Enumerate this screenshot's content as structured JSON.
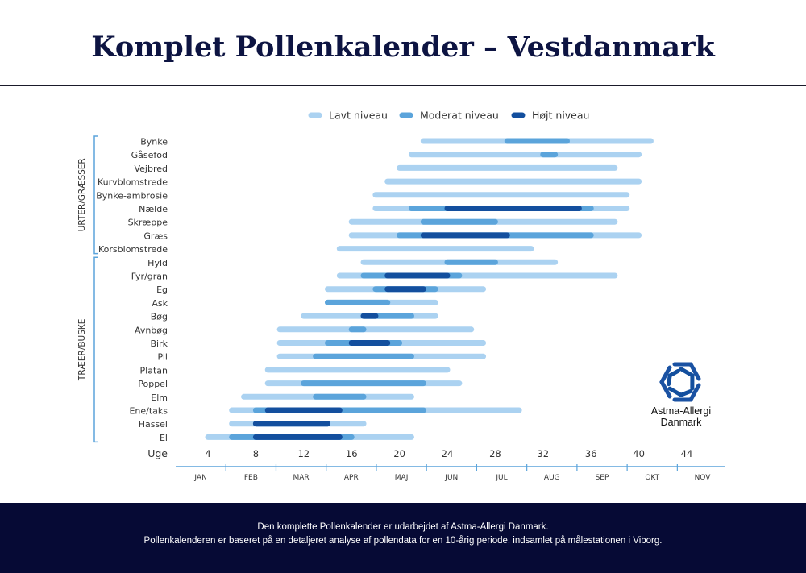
{
  "header": {
    "title": "Komplet Pollenkalender – Vestdanmark"
  },
  "chart_data": {
    "type": "bar",
    "subtype": "range-timeline",
    "x_axis_label": "Uge",
    "x_ticks": [
      4,
      8,
      12,
      16,
      20,
      24,
      28,
      32,
      36,
      40,
      44
    ],
    "x_range": [
      2,
      45.5
    ],
    "months": [
      "JAN",
      "FEB",
      "MAR",
      "APR",
      "MAJ",
      "JUN",
      "JUL",
      "AUG",
      "SEP",
      "OKT",
      "NOV"
    ],
    "legend": {
      "placement": "top",
      "entries": [
        {
          "key": "low",
          "label": "Lavt niveau",
          "color": "#abd2f1"
        },
        {
          "key": "moderate",
          "label": "Moderat niveau",
          "color": "#5ba4db"
        },
        {
          "key": "high",
          "label": "Højt niveau",
          "color": "#134f9e"
        }
      ]
    },
    "groups": [
      {
        "label": "URTER/GRÆSSER",
        "rows": [
          0,
          8
        ]
      },
      {
        "label": "TRÆER/BUSKE",
        "rows": [
          9,
          22
        ]
      }
    ],
    "rows": [
      {
        "name": "Bynke",
        "low": [
          22,
          41
        ],
        "moderate": [
          [
            29,
            34
          ]
        ],
        "high": []
      },
      {
        "name": "Gåsefod",
        "low": [
          21,
          40
        ],
        "moderate": [
          [
            32,
            33
          ]
        ],
        "high": []
      },
      {
        "name": "Vejbred",
        "low": [
          20,
          38
        ],
        "moderate": [],
        "high": []
      },
      {
        "name": "Kurvblomstrede",
        "low": [
          19,
          40
        ],
        "moderate": [],
        "high": []
      },
      {
        "name": "Bynke-ambrosie",
        "low": [
          18,
          39
        ],
        "moderate": [],
        "high": []
      },
      {
        "name": "Nælde",
        "low": [
          18,
          39
        ],
        "moderate": [
          [
            21,
            36
          ]
        ],
        "high": [
          [
            24,
            35
          ]
        ]
      },
      {
        "name": "Skræppe",
        "low": [
          16,
          38
        ],
        "moderate": [
          [
            22,
            28
          ]
        ],
        "high": []
      },
      {
        "name": "Græs",
        "low": [
          16,
          40
        ],
        "moderate": [
          [
            20,
            36
          ]
        ],
        "high": [
          [
            22,
            29
          ]
        ]
      },
      {
        "name": "Korsblomstrede",
        "low": [
          15,
          31
        ],
        "moderate": [],
        "high": []
      },
      {
        "name": "Hyld",
        "low": [
          17,
          33
        ],
        "moderate": [
          [
            24,
            28
          ]
        ],
        "high": []
      },
      {
        "name": "Fyr/gran",
        "low": [
          15,
          38
        ],
        "moderate": [
          [
            17,
            25
          ]
        ],
        "high": [
          [
            19,
            24
          ]
        ]
      },
      {
        "name": "Eg",
        "low": [
          14,
          27
        ],
        "moderate": [
          [
            18,
            23
          ]
        ],
        "high": [
          [
            19,
            22
          ]
        ]
      },
      {
        "name": "Ask",
        "low": [
          14,
          23
        ],
        "moderate": [
          [
            14,
            19
          ]
        ],
        "high": []
      },
      {
        "name": "Bøg",
        "low": [
          12,
          23
        ],
        "moderate": [
          [
            17,
            21
          ]
        ],
        "high": [
          [
            17,
            18
          ]
        ]
      },
      {
        "name": "Avnbøg",
        "low": [
          10,
          26
        ],
        "moderate": [
          [
            16,
            17
          ]
        ],
        "high": []
      },
      {
        "name": "Birk",
        "low": [
          10,
          27
        ],
        "moderate": [
          [
            14,
            20
          ]
        ],
        "high": [
          [
            16,
            19
          ]
        ]
      },
      {
        "name": "Pil",
        "low": [
          10,
          27
        ],
        "moderate": [
          [
            13,
            21
          ]
        ],
        "high": []
      },
      {
        "name": "Platan",
        "low": [
          9,
          24
        ],
        "moderate": [],
        "high": []
      },
      {
        "name": "Poppel",
        "low": [
          9,
          25
        ],
        "moderate": [
          [
            12,
            22
          ]
        ],
        "high": []
      },
      {
        "name": "Elm",
        "low": [
          7,
          21
        ],
        "moderate": [
          [
            13,
            17
          ]
        ],
        "high": []
      },
      {
        "name": "Ene/taks",
        "low": [
          6,
          30
        ],
        "moderate": [
          [
            8,
            22
          ]
        ],
        "high": [
          [
            9,
            15
          ]
        ]
      },
      {
        "name": "Hassel",
        "low": [
          6,
          17
        ],
        "moderate": [
          [
            8,
            14
          ]
        ],
        "high": [
          [
            8,
            14
          ]
        ]
      },
      {
        "name": "El",
        "low": [
          4,
          21
        ],
        "moderate": [
          [
            6,
            16
          ]
        ],
        "high": [
          [
            8,
            15
          ]
        ]
      }
    ]
  },
  "logo": {
    "line1": "Astma-Allergi",
    "line2": "Danmark"
  },
  "footer": {
    "line1": "Den komplette Pollenkalender er udarbejdet af Astma-Allergi Danmark.",
    "line2": "Pollenkalenderen er baseret på en detaljeret analyse af pollendata for en 10-årig periode, indsamlet på målestationen i Viborg."
  }
}
